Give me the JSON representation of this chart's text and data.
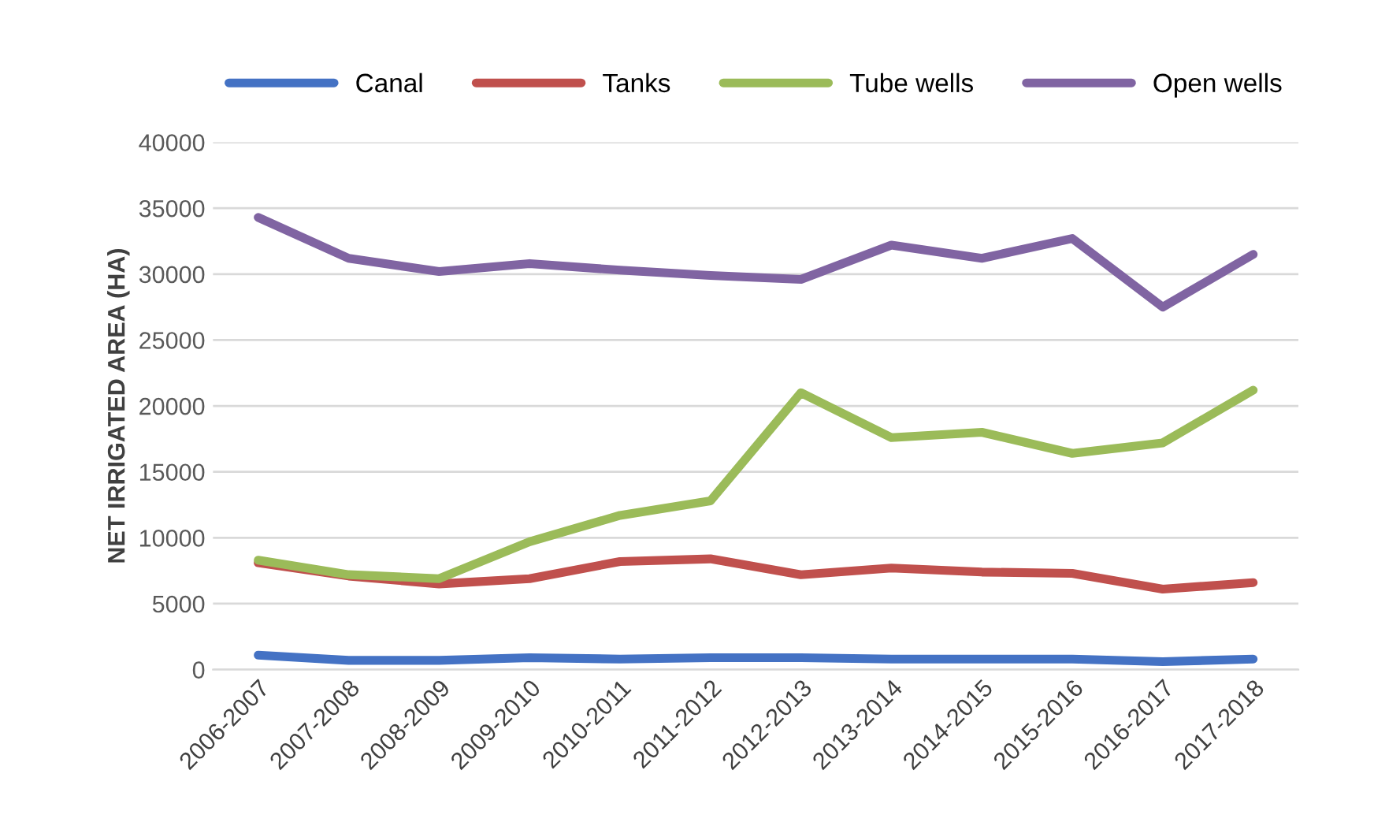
{
  "chart_data": {
    "type": "line",
    "ylabel": "NET IRRIGATED AREA (HA)",
    "categories": [
      "2006-2007",
      "2007-2008",
      "2008-2009",
      "2009-2010",
      "2010-2011",
      "2011-2012",
      "2012-2013",
      "2013-2014",
      "2014-2015",
      "2015-2016",
      "2016-2017",
      "2017-2018"
    ],
    "series": [
      {
        "name": "Canal",
        "color": "#4472c4",
        "values": [
          1100,
          700,
          700,
          900,
          800,
          900,
          900,
          800,
          800,
          800,
          600,
          800
        ]
      },
      {
        "name": "Tanks",
        "color": "#c0504d",
        "values": [
          8100,
          7100,
          6500,
          6900,
          8200,
          8400,
          7200,
          7700,
          7400,
          7300,
          6100,
          6600
        ]
      },
      {
        "name": "Tube wells",
        "color": "#9bbb59",
        "values": [
          8300,
          7200,
          6900,
          9700,
          11700,
          12800,
          21000,
          17600,
          18000,
          16400,
          17200,
          21200
        ]
      },
      {
        "name": "Open wells",
        "color": "#8064a2",
        "values": [
          34300,
          31200,
          30200,
          30800,
          30300,
          29900,
          29600,
          32200,
          31200,
          32700,
          27500,
          31500
        ]
      }
    ],
    "ylim": [
      0,
      40000
    ],
    "yticks": [
      0,
      5000,
      10000,
      15000,
      20000,
      25000,
      30000,
      35000,
      40000
    ],
    "grid": "y",
    "legend": "top",
    "marker": "none",
    "line_style": "solid"
  }
}
